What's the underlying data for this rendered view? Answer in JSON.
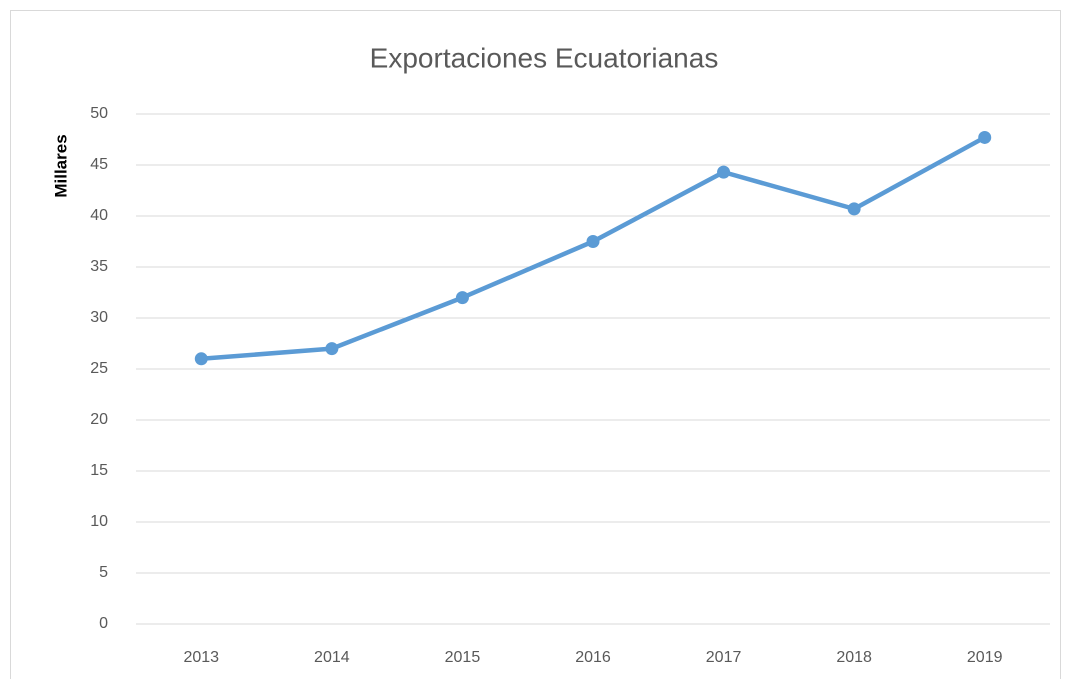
{
  "chart_data": {
    "type": "line",
    "title": "Exportaciones Ecuatorianas",
    "y_label": "Millares",
    "categories": [
      "2013",
      "2014",
      "2015",
      "2016",
      "2017",
      "2018",
      "2019"
    ],
    "values": [
      26,
      27,
      32,
      37.5,
      44.3,
      40.7,
      47.7
    ],
    "color": "#5b9bd5",
    "ylim": [
      0,
      50
    ],
    "yticks": [
      0,
      5,
      10,
      15,
      20,
      25,
      30,
      35,
      40,
      45,
      50
    ],
    "grid": true
  }
}
